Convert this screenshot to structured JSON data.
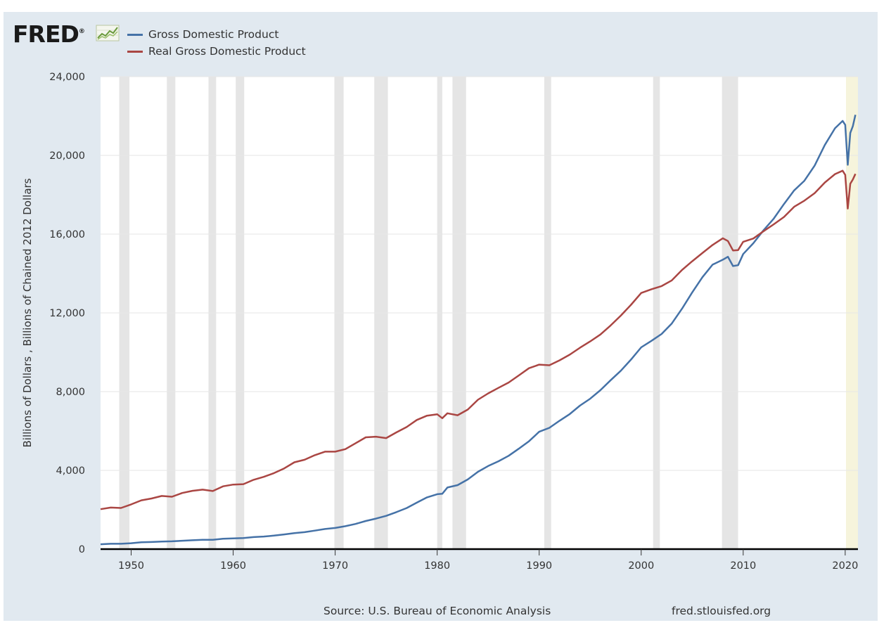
{
  "header": {
    "logo_text": "FRED",
    "logo_reg": "®"
  },
  "legend": [
    {
      "label": "Gross Domestic Product",
      "color": "#4572a7"
    },
    {
      "label": "Real Gross Domestic Product",
      "color": "#aa4643"
    }
  ],
  "footer": {
    "source": "Source: U.S. Bureau of Economic Analysis",
    "site": "fred.stlouisfed.org"
  },
  "chart_data": {
    "type": "line",
    "ylabel": "Billions of Dollars , Billions of Chained 2012 Dollars",
    "ylim": [
      0,
      24000
    ],
    "xlim": [
      1947.0,
      2021.25
    ],
    "yticks": [
      0,
      4000,
      8000,
      12000,
      16000,
      20000,
      24000
    ],
    "ytick_labels": [
      "0",
      "4,000",
      "8,000",
      "12,000",
      "16,000",
      "20,000",
      "24,000"
    ],
    "xticks": [
      1950,
      1960,
      1970,
      1980,
      1990,
      2000,
      2010,
      2020
    ],
    "xtick_labels": [
      "1950",
      "1960",
      "1970",
      "1980",
      "1990",
      "2000",
      "2010",
      "2020"
    ],
    "grid": true,
    "recessions": [
      [
        1948.83,
        1949.83
      ],
      [
        1953.5,
        1954.33
      ],
      [
        1957.58,
        1958.33
      ],
      [
        1960.25,
        1961.08
      ],
      [
        1969.92,
        1970.83
      ],
      [
        1973.83,
        1975.17
      ],
      [
        1980.0,
        1980.5
      ],
      [
        1981.5,
        1982.83
      ],
      [
        1990.5,
        1991.17
      ],
      [
        2001.17,
        2001.83
      ],
      [
        2007.92,
        2009.5
      ],
      [
        2020.08,
        2021.25
      ]
    ],
    "series": [
      {
        "name": "Gross Domestic Product",
        "color": "#4572a7",
        "x": [
          1947,
          1948,
          1949,
          1950,
          1951,
          1952,
          1953,
          1954,
          1955,
          1956,
          1957,
          1958,
          1959,
          1960,
          1961,
          1962,
          1963,
          1964,
          1965,
          1966,
          1967,
          1968,
          1969,
          1970,
          1971,
          1972,
          1973,
          1974,
          1975,
          1976,
          1977,
          1978,
          1979,
          1980,
          1980.5,
          1981,
          1982,
          1983,
          1984,
          1985,
          1986,
          1987,
          1988,
          1989,
          1990,
          1991,
          1992,
          1993,
          1994,
          1995,
          1996,
          1997,
          1998,
          1999,
          2000,
          2001,
          2002,
          2003,
          2004,
          2005,
          2006,
          2007,
          2008,
          2008.5,
          2009,
          2009.5,
          2010,
          2011,
          2012,
          2013,
          2014,
          2015,
          2016,
          2017,
          2018,
          2019,
          2019.75,
          2020.0,
          2020.25,
          2020.5,
          2020.75,
          2021.0
        ],
        "y": [
          245,
          270,
          270,
          300,
          345,
          360,
          385,
          395,
          425,
          450,
          475,
          475,
          525,
          545,
          565,
          610,
          640,
          685,
          745,
          815,
          860,
          940,
          1020,
          1075,
          1165,
          1280,
          1430,
          1550,
          1690,
          1880,
          2085,
          2360,
          2630,
          2790,
          2810,
          3130,
          3250,
          3540,
          3930,
          4220,
          4460,
          4740,
          5100,
          5480,
          5960,
          6160,
          6520,
          6860,
          7290,
          7640,
          8070,
          8580,
          9060,
          9630,
          10250,
          10580,
          10930,
          11460,
          12210,
          13040,
          13810,
          14450,
          14700,
          14850,
          14380,
          14420,
          14990,
          15540,
          16200,
          16790,
          17530,
          18220,
          18710,
          19480,
          20530,
          21380,
          21750,
          21550,
          19520,
          21140,
          21480,
          22060
        ]
      },
      {
        "name": "Real Gross Domestic Product",
        "color": "#aa4643",
        "x": [
          1947,
          1948,
          1949,
          1950,
          1951,
          1952,
          1953,
          1954,
          1955,
          1956,
          1957,
          1958,
          1959,
          1960,
          1961,
          1962,
          1963,
          1964,
          1965,
          1966,
          1967,
          1968,
          1969,
          1970,
          1971,
          1972,
          1973,
          1974,
          1975,
          1976,
          1977,
          1978,
          1979,
          1980,
          1980.5,
          1981,
          1982,
          1983,
          1984,
          1985,
          1986,
          1987,
          1988,
          1989,
          1990,
          1991,
          1992,
          1993,
          1994,
          1995,
          1996,
          1997,
          1998,
          1999,
          2000,
          2001,
          2002,
          2003,
          2004,
          2005,
          2006,
          2007,
          2008,
          2008.5,
          2009,
          2009.5,
          2010,
          2011,
          2012,
          2013,
          2014,
          2015,
          2016,
          2017,
          2018,
          2019,
          2019.75,
          2020.0,
          2020.25,
          2020.5,
          2020.75,
          2021.0
        ],
        "y": [
          2030,
          2110,
          2090,
          2270,
          2480,
          2570,
          2700,
          2660,
          2850,
          2960,
          3020,
          2950,
          3190,
          3280,
          3300,
          3520,
          3670,
          3860,
          4100,
          4410,
          4540,
          4770,
          4950,
          4950,
          5080,
          5380,
          5680,
          5710,
          5640,
          5930,
          6200,
          6560,
          6780,
          6850,
          6650,
          6900,
          6800,
          7090,
          7590,
          7910,
          8190,
          8460,
          8820,
          9190,
          9370,
          9340,
          9590,
          9880,
          10230,
          10550,
          10900,
          11360,
          11860,
          12410,
          13010,
          13200,
          13360,
          13650,
          14180,
          14620,
          15040,
          15450,
          15790,
          15650,
          15170,
          15190,
          15610,
          15780,
          16150,
          16500,
          16870,
          17390,
          17700,
          18080,
          18620,
          19050,
          19220,
          19010,
          17300,
          18560,
          18770,
          19060
        ]
      }
    ]
  }
}
